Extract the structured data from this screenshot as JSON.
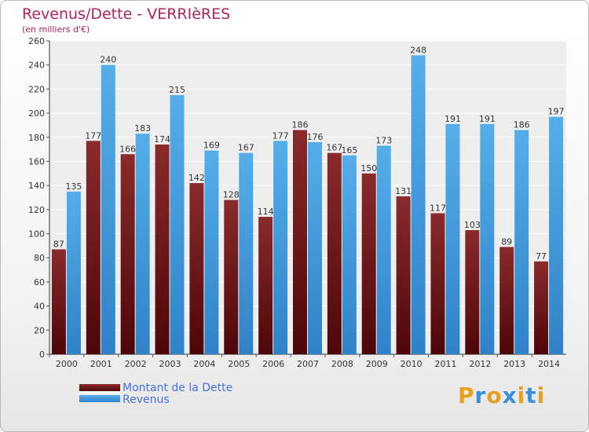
{
  "title": "Revenus/Dette - VERRIèRES",
  "subtitle": "(en milliers d'€)",
  "colors": {
    "dette": "#7a1f22",
    "revenus": "#4aa3e6",
    "title": "#b0245a",
    "legend_text": "#4a6fe0"
  },
  "chart_data": {
    "type": "bar",
    "title": "Revenus/Dette - VERRIèRES",
    "ylabel": "(en milliers d'€)",
    "xlabel": "",
    "ylim": [
      0,
      260
    ],
    "yticks": [
      0,
      20,
      40,
      60,
      80,
      100,
      120,
      140,
      160,
      180,
      200,
      220,
      240,
      260
    ],
    "grid": true,
    "legend_position": "bottom-left",
    "categories": [
      "2000",
      "2001",
      "2002",
      "2003",
      "2004",
      "2005",
      "2006",
      "2007",
      "2008",
      "2009",
      "2010",
      "2011",
      "2012",
      "2013",
      "2014"
    ],
    "series": [
      {
        "name": "Montant de la Dette",
        "values": [
          87,
          177,
          166,
          174,
          142,
          128,
          114,
          186,
          167,
          150,
          131,
          117,
          103,
          89,
          77
        ]
      },
      {
        "name": "Revenus",
        "values": [
          135,
          240,
          183,
          215,
          169,
          167,
          177,
          176,
          165,
          173,
          248,
          191,
          191,
          186,
          197
        ]
      }
    ]
  },
  "logo": {
    "letters": [
      "P",
      "r",
      "o",
      "x",
      "i",
      "t",
      "i"
    ],
    "colors": [
      "#e8a020",
      "#3a8fd8",
      "#e8a020",
      "#3a8fd8",
      "#e8a020",
      "#3a8fd8",
      "#e8a020"
    ]
  }
}
